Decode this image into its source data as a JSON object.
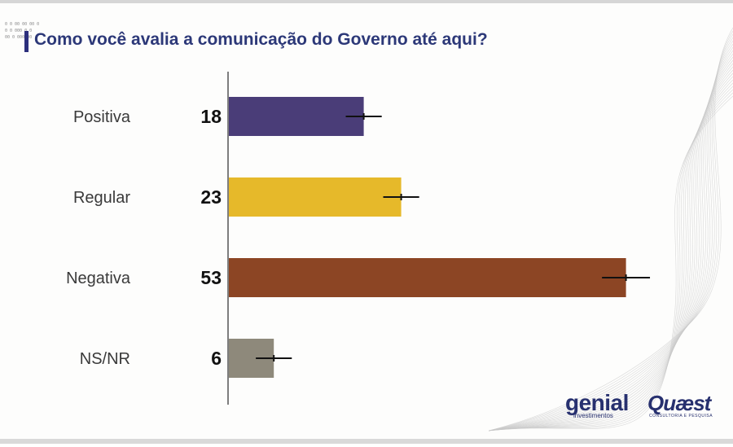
{
  "title": "Como você avalia a comunicação do Governo até aqui?",
  "tiny_text": [
    "0 0 00  00 00 0",
    "0 0 000 0 0",
    "00 0 000 00"
  ],
  "colors": {
    "title": "#2c3878",
    "positiva": "#4a3d78",
    "regular": "#e6b92a",
    "negativa": "#8c4524",
    "nsnr": "#8e897b",
    "axis": "#555555",
    "error_bar": "#111111"
  },
  "chart_data": {
    "type": "bar",
    "orientation": "horizontal",
    "categories": [
      "Positiva",
      "Regular",
      "Negativa",
      "NS/NR"
    ],
    "values": [
      18,
      23,
      53,
      6
    ],
    "value_labels": [
      "18",
      "23",
      "53",
      "6"
    ],
    "error_margin": 2,
    "xlim": [
      0,
      60
    ],
    "grid": false,
    "legend": "none"
  },
  "logos": {
    "genial": {
      "name": "genial",
      "tagline": "investimentos"
    },
    "quaest": {
      "name": "Quæst",
      "tagline": "CONSULTORIA E PESQUISA"
    }
  }
}
